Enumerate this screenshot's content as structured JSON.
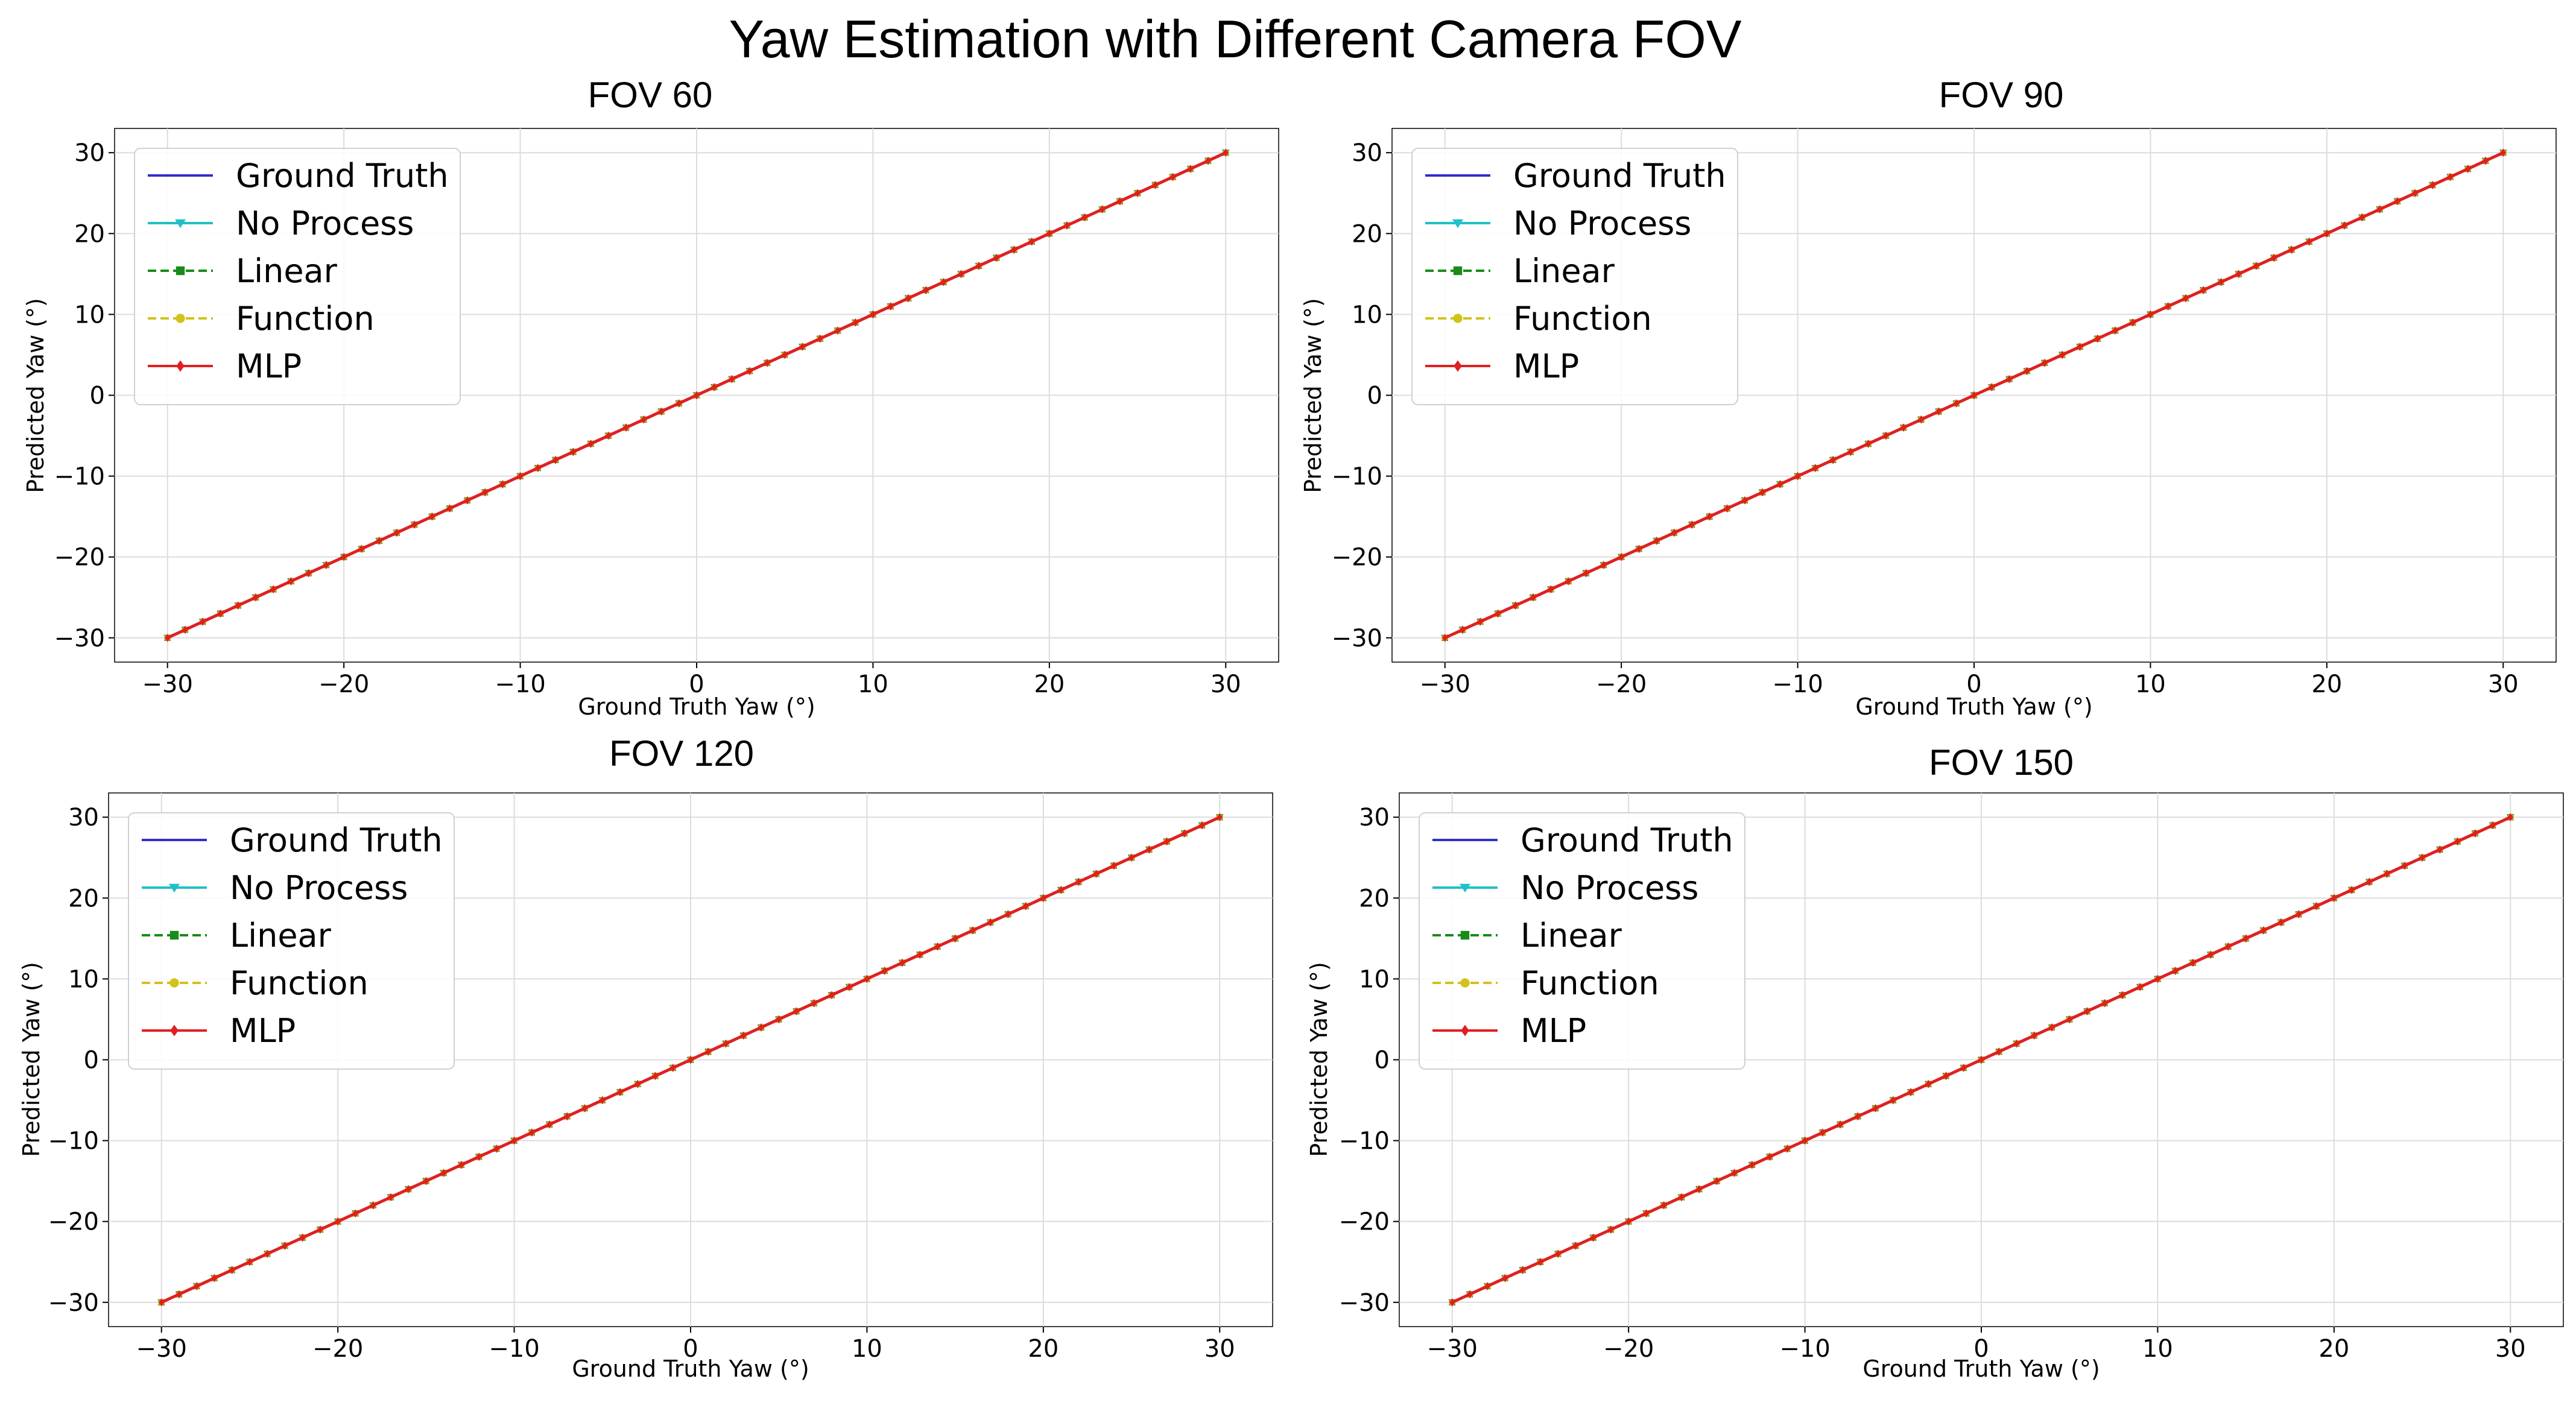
{
  "figure_title": "Yaw Estimation with Different Camera FOV",
  "legend_entries": [
    {
      "name": "Ground Truth",
      "color": "#3030c8",
      "dash": "solid",
      "marker": "none"
    },
    {
      "name": "No Process",
      "color": "#20c0c8",
      "dash": "solid",
      "marker": "triangle-down"
    },
    {
      "name": "Linear",
      "color": "#1a8a1a",
      "dash": "dashed",
      "marker": "square"
    },
    {
      "name": "Function",
      "color": "#d2c21a",
      "dash": "dashed",
      "marker": "circle"
    },
    {
      "name": "MLP",
      "color": "#e02020",
      "dash": "solid",
      "marker": "diamond"
    }
  ],
  "chart_data": [
    {
      "type": "line",
      "title": "FOV 60",
      "xlabel": "Ground Truth Yaw (°)",
      "ylabel": "Predicted Yaw (°)",
      "xlim": [
        -33,
        33
      ],
      "ylim": [
        -33,
        33
      ],
      "xticks": [
        -30,
        -20,
        -10,
        0,
        10,
        20,
        30
      ],
      "yticks": [
        -30,
        -20,
        -10,
        0,
        10,
        20,
        30
      ],
      "xtick_labels": [
        "−30",
        "−20",
        "−10",
        "0",
        "10",
        "20",
        "30"
      ],
      "ytick_labels": [
        "−30",
        "−20",
        "−10",
        "0",
        "10",
        "20",
        "30"
      ],
      "grid": true,
      "legend": "upper-left",
      "x": {
        "start": -30,
        "end": 30,
        "step": 1
      },
      "series": [
        {
          "name": "Ground Truth",
          "values": "y = x"
        },
        {
          "name": "No Process",
          "values": "y = x"
        },
        {
          "name": "Linear",
          "values": "y = x"
        },
        {
          "name": "Function",
          "values": "y = x"
        },
        {
          "name": "MLP",
          "values": "y = x"
        }
      ]
    },
    {
      "type": "line",
      "title": "FOV 90",
      "xlabel": "Ground Truth Yaw (°)",
      "ylabel": "Predicted Yaw (°)",
      "xlim": [
        -33,
        33
      ],
      "ylim": [
        -33,
        33
      ],
      "xticks": [
        -30,
        -20,
        -10,
        0,
        10,
        20,
        30
      ],
      "yticks": [
        -30,
        -20,
        -10,
        0,
        10,
        20,
        30
      ],
      "xtick_labels": [
        "−30",
        "−20",
        "−10",
        "0",
        "10",
        "20",
        "30"
      ],
      "ytick_labels": [
        "−30",
        "−20",
        "−10",
        "0",
        "10",
        "20",
        "30"
      ],
      "grid": true,
      "legend": "upper-left",
      "x": {
        "start": -30,
        "end": 30,
        "step": 1
      },
      "series": [
        {
          "name": "Ground Truth",
          "values": "y = x"
        },
        {
          "name": "No Process",
          "values": "y = x"
        },
        {
          "name": "Linear",
          "values": "y = x"
        },
        {
          "name": "Function",
          "values": "y = x"
        },
        {
          "name": "MLP",
          "values": "y = x"
        }
      ]
    },
    {
      "type": "line",
      "title": "FOV 120",
      "xlabel": "Ground Truth Yaw (°)",
      "ylabel": "Predicted Yaw (°)",
      "xlim": [
        -33,
        33
      ],
      "ylim": [
        -33,
        33
      ],
      "xticks": [
        -30,
        -20,
        -10,
        0,
        10,
        20,
        30
      ],
      "yticks": [
        -30,
        -20,
        -10,
        0,
        10,
        20,
        30
      ],
      "xtick_labels": [
        "−30",
        "−20",
        "−10",
        "0",
        "10",
        "20",
        "30"
      ],
      "ytick_labels": [
        "−30",
        "−20",
        "−10",
        "0",
        "10",
        "20",
        "30"
      ],
      "grid": true,
      "legend": "upper-left",
      "x": {
        "start": -30,
        "end": 30,
        "step": 1
      },
      "series": [
        {
          "name": "Ground Truth",
          "values": "y = x"
        },
        {
          "name": "No Process",
          "values": "y = x"
        },
        {
          "name": "Linear",
          "values": "y = x"
        },
        {
          "name": "Function",
          "values": "y = x"
        },
        {
          "name": "MLP",
          "values": "y = x"
        }
      ]
    },
    {
      "type": "line",
      "title": "FOV 150",
      "xlabel": "Ground Truth Yaw (°)",
      "ylabel": "Predicted Yaw (°)",
      "xlim": [
        -33,
        33
      ],
      "ylim": [
        -33,
        33
      ],
      "xticks": [
        -30,
        -20,
        -10,
        0,
        10,
        20,
        30
      ],
      "yticks": [
        -30,
        -20,
        -10,
        0,
        10,
        20,
        30
      ],
      "xtick_labels": [
        "−30",
        "−20",
        "−10",
        "0",
        "10",
        "20",
        "30"
      ],
      "ytick_labels": [
        "−30",
        "−20",
        "−10",
        "0",
        "10",
        "20",
        "30"
      ],
      "grid": true,
      "legend": "upper-left",
      "x": {
        "start": -30,
        "end": 30,
        "step": 1
      },
      "series": [
        {
          "name": "Ground Truth",
          "values": "y = x"
        },
        {
          "name": "No Process",
          "values": "y = x"
        },
        {
          "name": "Linear",
          "values": "y = x"
        },
        {
          "name": "Function",
          "values": "y = x"
        },
        {
          "name": "MLP",
          "values": "y = x"
        }
      ]
    }
  ]
}
